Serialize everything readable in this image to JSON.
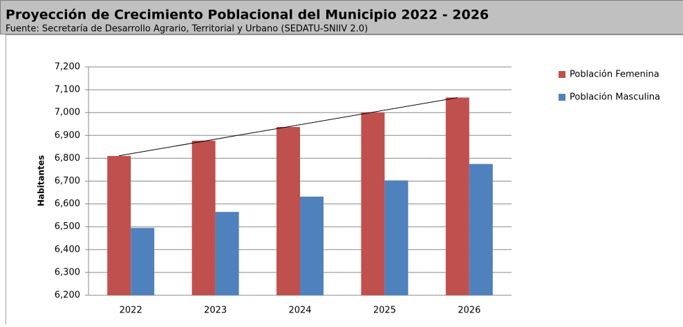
{
  "chart_data": {
    "type": "bar",
    "title": "Proyección de Crecimiento Poblacional del Municipio 2022 - 2026",
    "subtitle": "Fuente: Secretaría de Desarrollo Agrario, Territorial y Urbano (SEDATU-SNIIV 2.0)",
    "y_label": "Habitantes",
    "categories": [
      "2022",
      "2023",
      "2024",
      "2025",
      "2026"
    ],
    "series": [
      {
        "name": "Población Femenina",
        "color": "#c0504d",
        "values": [
          6810,
          6877,
          6937,
          7001,
          7066
        ]
      },
      {
        "name": "Población Masculina",
        "color": "#4f81bd",
        "values": [
          6495,
          6565,
          6632,
          6703,
          6775
        ]
      }
    ],
    "trendline": true,
    "ylim": [
      6200,
      7200
    ],
    "yticks": [
      {
        "value": 6200,
        "label": "6,200"
      },
      {
        "value": 6300,
        "label": "6,300"
      },
      {
        "value": 6400,
        "label": "6,400"
      },
      {
        "value": 6500,
        "label": "6,500"
      },
      {
        "value": 6600,
        "label": "6,600"
      },
      {
        "value": 6700,
        "label": "6,700"
      },
      {
        "value": 6800,
        "label": "6,800"
      },
      {
        "value": 6900,
        "label": "6,900"
      },
      {
        "value": 7000,
        "label": "7,000"
      },
      {
        "value": 7100,
        "label": "7,100"
      },
      {
        "value": 7200,
        "label": "7,200"
      }
    ],
    "grid": true,
    "legend": "right"
  }
}
